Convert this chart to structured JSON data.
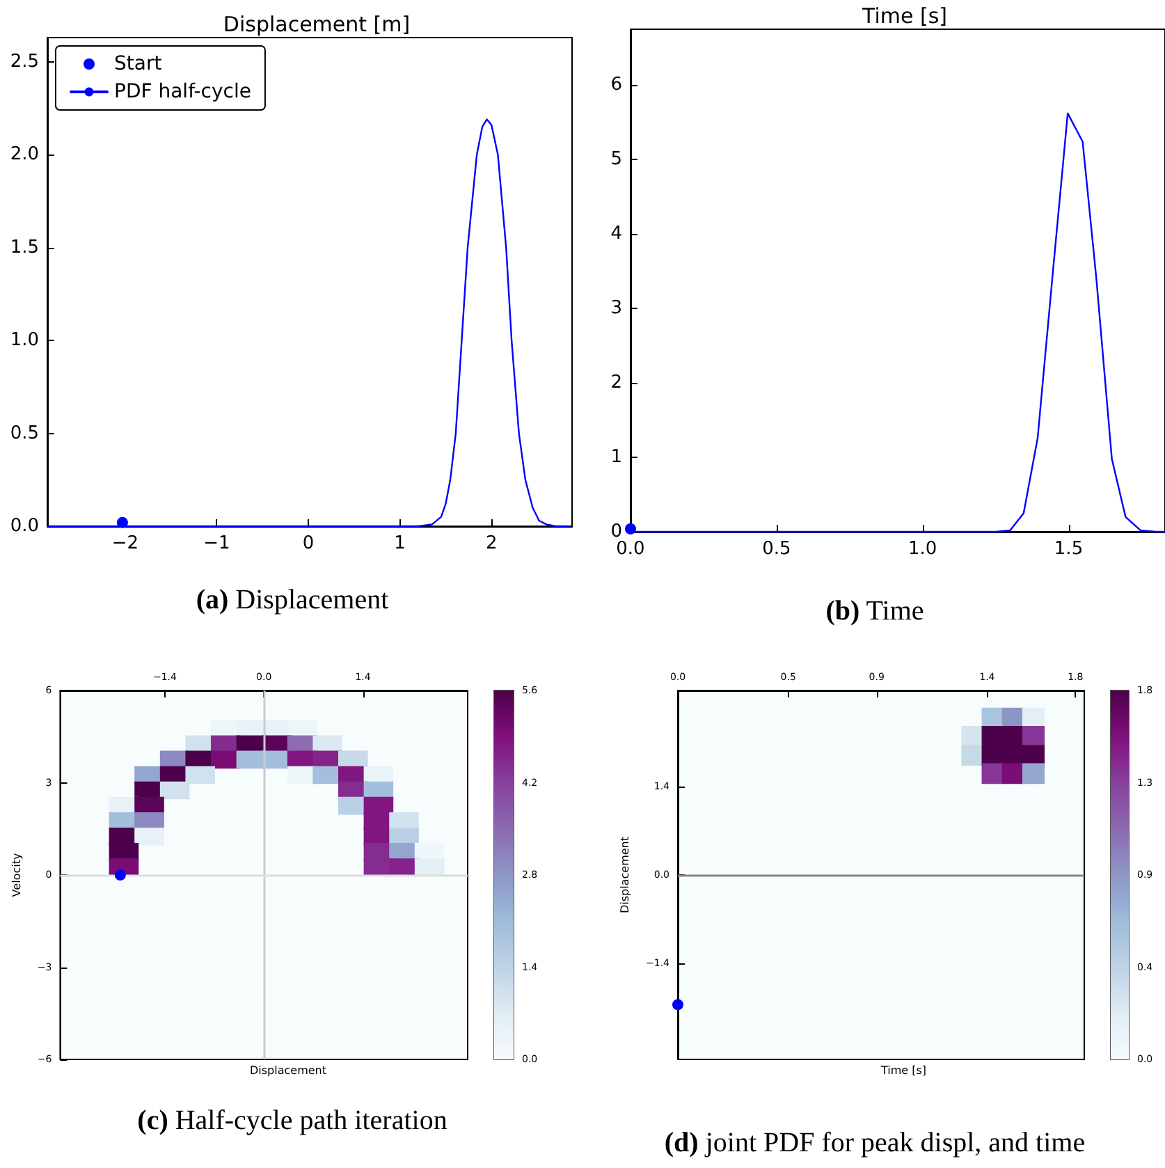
{
  "chart_data": [
    {
      "type": "line",
      "title": "Displacement [m]",
      "annotations": [
        "(a) Displacement"
      ],
      "legend": "top left",
      "grid": false,
      "xlim": [
        -2.85,
        2.88
      ],
      "xticks": [
        {
          "value": -2,
          "label": "−2"
        },
        {
          "value": -1,
          "label": "−1"
        },
        0,
        1,
        2
      ],
      "ylim": [
        0,
        2.63
      ],
      "yticks": [
        {
          "value": 0,
          "label": "0.0"
        },
        0.5,
        {
          "value": 1,
          "label": "1.0"
        },
        1.5,
        {
          "value": 2,
          "label": "2.0"
        },
        2.5
      ],
      "series": [
        {
          "name": "Start",
          "type": "scatter",
          "marker": "circle",
          "color": "#0000ff",
          "x": [
            -2.03
          ],
          "values": [
            0.02
          ]
        },
        {
          "name": "PDF half-cycle",
          "type": "line",
          "color": "#0000ff",
          "x": [
            -2.85,
            1.2,
            1.35,
            1.45,
            1.5,
            1.55,
            1.61,
            1.675,
            1.74,
            1.84,
            1.9,
            1.95,
            2.0,
            2.07,
            2.16,
            2.22,
            2.3,
            2.37,
            2.45,
            2.52,
            2.6,
            2.7,
            2.85
          ],
          "values": [
            0,
            0,
            0.01,
            0.05,
            0.12,
            0.25,
            0.5,
            1.0,
            1.5,
            2.0,
            2.15,
            2.19,
            2.16,
            2.0,
            1.5,
            1.0,
            0.5,
            0.25,
            0.1,
            0.03,
            0.01,
            0,
            0
          ]
        }
      ]
    },
    {
      "type": "line",
      "title": "Time [s]",
      "annotations": [
        "(b) Time"
      ],
      "grid": false,
      "xlim": [
        0,
        1.83
      ],
      "xticks": [
        {
          "value": 0,
          "label": "0.0"
        },
        0.5,
        {
          "value": 1,
          "label": "1.0"
        },
        1.5
      ],
      "ylim": [
        0,
        6.75
      ],
      "yticks": [
        0,
        1,
        2,
        3,
        4,
        5,
        6
      ],
      "series": [
        {
          "type": "scatter",
          "marker": "circle",
          "color": "#0000ff",
          "x": [
            0
          ],
          "values": [
            0.04
          ]
        },
        {
          "type": "line",
          "color": "#0000ff",
          "x": [
            0,
            1.25,
            1.3,
            1.346,
            1.394,
            1.444,
            1.497,
            1.548,
            1.595,
            1.648,
            1.695,
            1.746,
            1.8,
            1.83
          ],
          "values": [
            0,
            0,
            0.02,
            0.25,
            1.26,
            3.4,
            5.62,
            5.24,
            3.4,
            0.98,
            0.2,
            0.02,
            0,
            0
          ]
        }
      ]
    },
    {
      "type": "scatter",
      "xlabel": "Displacement",
      "ylabel": "Velocity",
      "annotations": [
        "(c) Half-cycle path iteration"
      ],
      "xlim": [
        -2.88,
        2.88
      ],
      "xticks": [
        {
          "value": -1.4,
          "label": "−1.4"
        },
        {
          "value": 0,
          "label": "0.0"
        },
        1.4
      ],
      "ylim": [
        -6,
        6
      ],
      "yticks": [
        {
          "value": -6,
          "label": "−6"
        },
        {
          "value": -3,
          "label": "−3"
        },
        0,
        3,
        6
      ],
      "clim": [
        0,
        5.6
      ],
      "cticks": [
        {
          "value": 0,
          "label": "0.0"
        },
        1.4,
        2.8,
        4.2,
        5.6
      ],
      "ref_lines": [
        {
          "axis": "x",
          "value": 0,
          "color": "#cccccc"
        },
        {
          "axis": "y",
          "value": 0,
          "color": "#dddddd"
        }
      ],
      "series": [
        {
          "marker": "square",
          "x": [
            -0.54,
            -0.18,
            0.18,
            0.54,
            -0.9,
            -0.54,
            -0.18,
            0.18,
            0.54,
            0.9,
            -1.26,
            -0.9,
            -0.54,
            -0.18,
            0.18,
            0.54,
            0.9,
            1.26,
            -1.62,
            -1.26,
            -0.9,
            0.54,
            0.9,
            1.26,
            1.62,
            -1.62,
            -1.26,
            1.26,
            1.62,
            -1.98,
            -1.62,
            1.26,
            1.62,
            -1.98,
            -1.62,
            1.62,
            1.98,
            -1.98,
            -1.62,
            1.62,
            1.98,
            -1.98,
            1.62,
            1.98,
            2.34,
            -1.98,
            1.62,
            1.98,
            2.34
          ],
          "values": [
            4.75,
            4.75,
            4.75,
            4.75,
            4.25,
            4.25,
            4.25,
            4.25,
            4.25,
            4.25,
            3.75,
            3.75,
            3.75,
            3.75,
            3.75,
            3.75,
            3.75,
            3.75,
            3.25,
            3.25,
            3.25,
            3.25,
            3.25,
            3.25,
            3.25,
            2.75,
            2.75,
            2.75,
            2.75,
            2.25,
            2.25,
            2.25,
            2.25,
            1.75,
            1.75,
            1.75,
            1.75,
            1.25,
            1.25,
            1.25,
            1.25,
            0.75,
            0.75,
            0.75,
            0.75,
            0.25,
            0.25,
            0.25,
            0.25
          ],
          "cvalues": [
            0.3,
            0.5,
            0.5,
            0.3,
            1.0,
            4.5,
            5.6,
            5.4,
            3.5,
            0.8,
            3.0,
            5.6,
            5.0,
            2.0,
            2.0,
            4.8,
            4.6,
            1.2,
            2.5,
            5.6,
            1.0,
            0.3,
            2.0,
            4.8,
            0.4,
            5.6,
            1.0,
            4.5,
            2.0,
            0.5,
            5.4,
            1.5,
            4.8,
            2.0,
            3.0,
            4.8,
            1.0,
            5.6,
            0.5,
            4.8,
            1.5,
            5.6,
            4.5,
            2.5,
            0.2,
            5.0,
            4.5,
            4.6,
            0.6
          ],
          "colors": [
            "#edf5f9",
            "#e7f1f7",
            "#e7f1f7",
            "#edf5f9",
            "#d2e1ee",
            "#852c8f",
            "#4d004b",
            "#5c0459",
            "#8c6bb1",
            "#dbe8f2",
            "#8c8ac0",
            "#4d004b",
            "#7a0d75",
            "#a3bfdc",
            "#a3bfdc",
            "#821681",
            "#84248a",
            "#c8dae9",
            "#94a6cf",
            "#4d004b",
            "#d2e1ee",
            "#edf5f9",
            "#a3bfdc",
            "#821681",
            "#eaf3f8",
            "#4d004b",
            "#d2e1ee",
            "#852c8f",
            "#a3bfdc",
            "#e7f1f7",
            "#5c0459",
            "#bad0e4",
            "#821681",
            "#a3bfdc",
            "#8c8ac0",
            "#821681",
            "#d2e1ee",
            "#4d004b",
            "#e7f1f7",
            "#821681",
            "#bad0e4",
            "#4d004b",
            "#852c8f",
            "#94a6cf",
            "#f0f7fa",
            "#7a0d75",
            "#852c8f",
            "#84248a",
            "#e3eef5"
          ]
        },
        {
          "marker": "circle",
          "color": "#0000ff",
          "x": [
            -2.03
          ],
          "values": [
            0
          ]
        }
      ]
    },
    {
      "type": "scatter",
      "xlabel": "Time [s]",
      "ylabel": "Displacement",
      "annotations": [
        "(d) joint PDF for peak displ, and time"
      ],
      "xlim": [
        0,
        1.84
      ],
      "xticks": [
        {
          "value": 0,
          "label": "0.0"
        },
        0.5,
        0.9,
        1.4,
        1.8
      ],
      "ylim": [
        -2.93,
        2.93
      ],
      "yticks": [
        {
          "value": -1.4,
          "label": "−1.4"
        },
        {
          "value": 0,
          "label": "0.0"
        },
        1.4
      ],
      "clim": [
        0,
        1.8
      ],
      "cticks": [
        {
          "value": 0,
          "label": "0.0"
        },
        {
          "value": 0.45,
          "label": "0.4"
        },
        0.9,
        {
          "value": 1.35,
          "label": "1.3"
        },
        1.8
      ],
      "ref_lines": [
        {
          "axis": "y",
          "value": 0,
          "color": "#888888"
        }
      ],
      "series": [
        {
          "marker": "square",
          "x": [
            1.426,
            1.518,
            1.61,
            1.334,
            1.426,
            1.518,
            1.61,
            1.334,
            1.426,
            1.518,
            1.61,
            1.426,
            1.518,
            1.61
          ],
          "values": [
            2.49,
            2.49,
            2.49,
            2.2,
            2.2,
            2.2,
            2.2,
            1.9,
            1.9,
            1.9,
            1.9,
            1.61,
            1.61,
            1.61
          ],
          "cvalues": [
            0.6,
            0.9,
            0.2,
            0.3,
            1.8,
            1.8,
            1.4,
            0.4,
            1.8,
            1.8,
            1.8,
            1.4,
            1.6,
            0.8
          ],
          "colors": [
            "#a9c4de",
            "#8c96c6",
            "#e3eef5",
            "#d5e4ef",
            "#4d004b",
            "#4d004b",
            "#863696",
            "#c6d9e9",
            "#4d004b",
            "#4d004b",
            "#4d004b",
            "#863696",
            "#7b0d77",
            "#94a7cf"
          ]
        },
        {
          "marker": "circle",
          "color": "#0000ff",
          "x": [
            0
          ],
          "values": [
            -2.06
          ]
        }
      ]
    }
  ]
}
